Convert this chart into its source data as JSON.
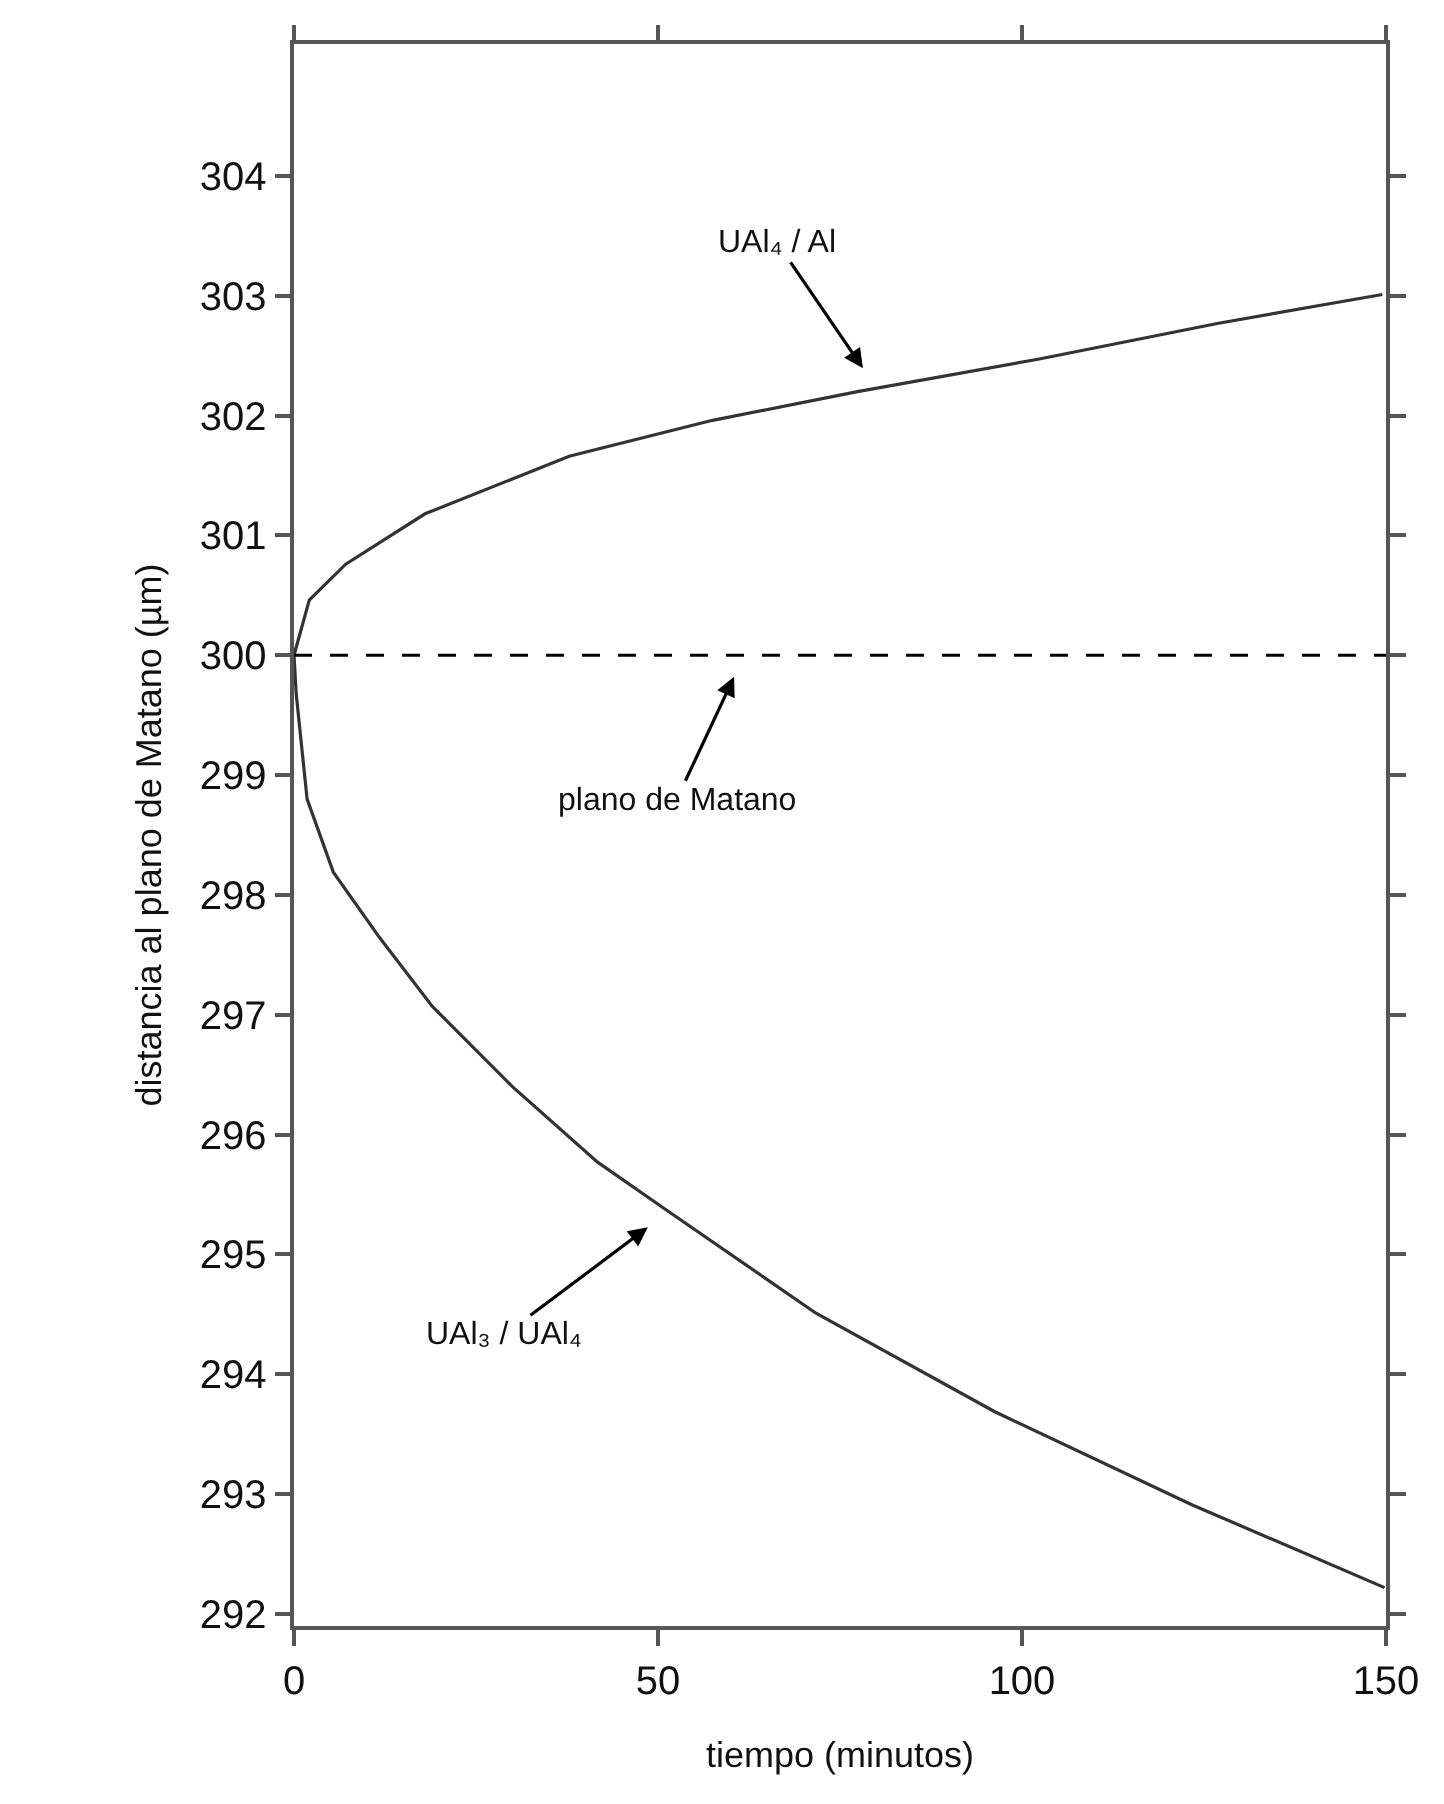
{
  "chart_data": {
    "type": "line",
    "xlabel": "tiempo (minutos)",
    "ylabel": "distancia al plano de Matano (µm)",
    "xlim": [
      0,
      150
    ],
    "xticks": [
      0,
      50,
      100,
      150
    ],
    "ylim": [
      291.9,
      305.1
    ],
    "yticks": [
      292,
      293,
      294,
      295,
      296,
      297,
      298,
      299,
      300,
      301,
      302,
      303,
      304
    ],
    "marker": "none",
    "line_style": "solid",
    "series": [
      {
        "color": "#333333",
        "x": [
          149.5,
          127,
          102.2,
          77.4,
          57.5,
          37.8,
          18,
          7.1,
          2.1,
          0,
          0.3,
          1.8,
          5.4,
          11.8,
          19,
          30,
          41.7,
          50.7,
          71.7,
          96.2,
          123.4,
          149.8
        ],
        "values": [
          303.01,
          302.77,
          302.47,
          302.2,
          301.96,
          301.66,
          301.18,
          300.76,
          300.46,
          300,
          299.68,
          298.8,
          298.19,
          297.64,
          297.07,
          296.4,
          295.77,
          295.39,
          294.51,
          293.69,
          292.91,
          292.22
        ]
      }
    ],
    "ref_lines": [
      {
        "axis": "y",
        "value": 300,
        "color": "#000000",
        "line_style": "dashed"
      }
    ],
    "annotations": [
      "UAl₄ / Al",
      "plano de Matano",
      "UAl₃ / UAl₄"
    ]
  }
}
